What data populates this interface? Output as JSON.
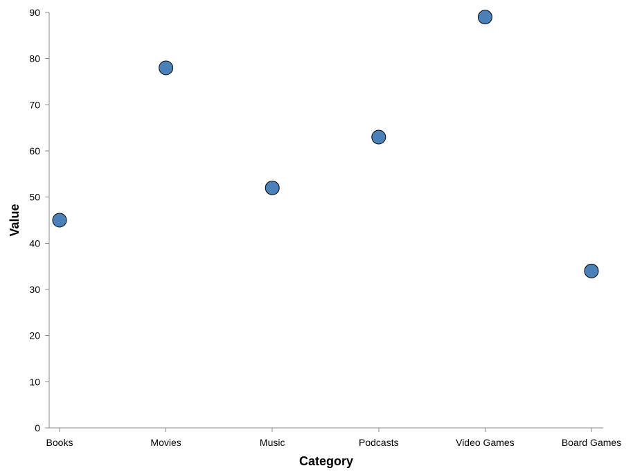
{
  "chart_data": {
    "type": "scatter",
    "title": "",
    "xlabel": "Category",
    "ylabel": "Value",
    "categories": [
      "Books",
      "Movies",
      "Music",
      "Podcasts",
      "Video Games",
      "Board Games"
    ],
    "values": [
      45,
      78,
      52,
      63,
      89,
      34
    ],
    "ylim": [
      0,
      90
    ],
    "yticks": [
      0,
      10,
      20,
      30,
      40,
      50,
      60,
      70,
      80,
      90
    ],
    "grid": false,
    "legend": "none",
    "point_color": "#4a81b8"
  }
}
